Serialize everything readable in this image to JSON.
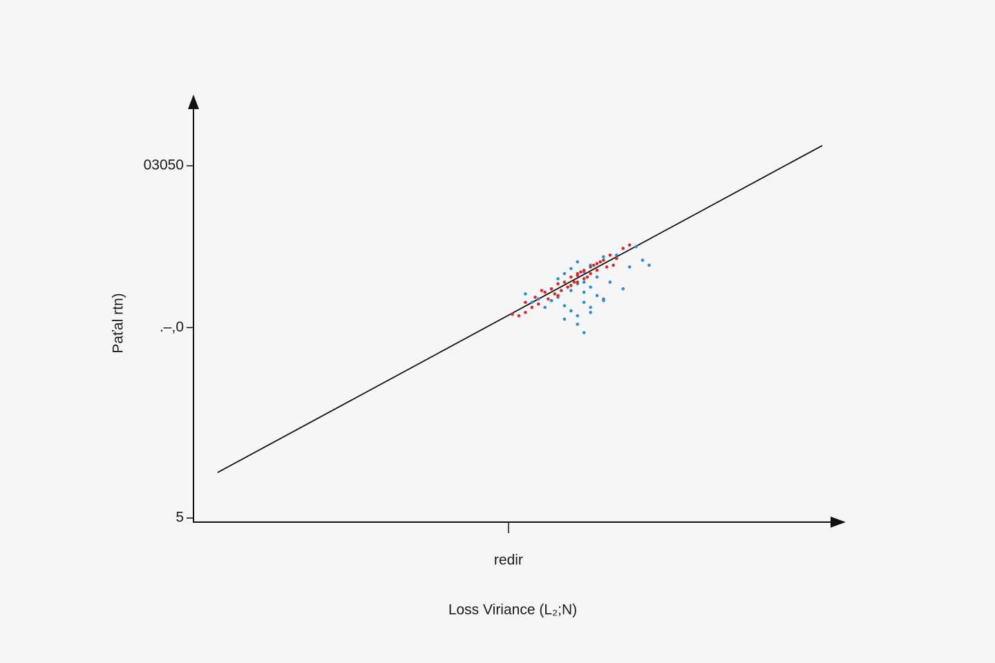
{
  "chart_data": {
    "type": "scatter",
    "x_label": "Loss Viriance (L₂;N)",
    "y_label": "Paťal rtn)",
    "xlim": [
      0,
      100
    ],
    "ylim": [
      4.8,
      30
    ],
    "xticks": [
      {
        "value": 48.4,
        "label": "redir"
      }
    ],
    "yticks": [
      5,
      {
        "value": 16.3,
        "label": ".–,0"
      },
      {
        "value": 25.9,
        "label": "03050"
      }
    ],
    "line": {
      "color": "#111111",
      "x": [
        3.7,
        96.6
      ],
      "values": [
        7.7,
        27.1
      ]
    },
    "series": [
      {
        "color": "#2b8cd4",
        "x": [
          51,
          52,
          53,
          54,
          55,
          55,
          56,
          56,
          57,
          57,
          58,
          58,
          58,
          59,
          59,
          59,
          60,
          60,
          60,
          60,
          61,
          61,
          61,
          62,
          62,
          63,
          63,
          64,
          65,
          66,
          67,
          68,
          69,
          70,
          57,
          59,
          61,
          63,
          55,
          60
        ],
        "values": [
          18.3,
          17.8,
          18.0,
          17.5,
          18.6,
          17.9,
          19.2,
          18.1,
          19.5,
          17.6,
          19.8,
          18.5,
          17.3,
          20.2,
          18.9,
          17.0,
          19.6,
          18.4,
          17.8,
          16.0,
          20.0,
          18.7,
          17.5,
          19.3,
          18.2,
          20.5,
          17.9,
          19.0,
          20.6,
          18.6,
          19.9,
          21.1,
          20.3,
          20.0,
          16.8,
          16.5,
          17.2,
          18.0,
          17.9,
          19.0
        ]
      },
      {
        "color": "#d42a2a",
        "x": [
          49,
          50,
          51,
          52,
          52.5,
          53,
          54,
          54.5,
          55,
          55.5,
          56,
          56.5,
          57,
          57.5,
          58,
          58,
          58.5,
          59,
          59,
          59.5,
          60,
          60,
          60.5,
          61,
          61,
          61.5,
          62,
          62.5,
          63,
          63.5,
          64,
          65,
          66,
          67,
          51,
          53.5,
          56,
          59,
          62,
          64.5
        ],
        "values": [
          17.1,
          17.0,
          17.8,
          17.5,
          18.1,
          17.7,
          18.4,
          18.0,
          18.6,
          18.3,
          18.9,
          18.5,
          19.0,
          18.7,
          19.3,
          18.8,
          19.0,
          19.5,
          19.0,
          19.6,
          19.7,
          19.2,
          19.3,
          19.9,
          19.5,
          20.0,
          19.7,
          20.2,
          20.3,
          19.9,
          20.6,
          20.4,
          21.0,
          21.2,
          17.2,
          18.5,
          18.2,
          19.4,
          20.1,
          20.0
        ]
      }
    ]
  }
}
